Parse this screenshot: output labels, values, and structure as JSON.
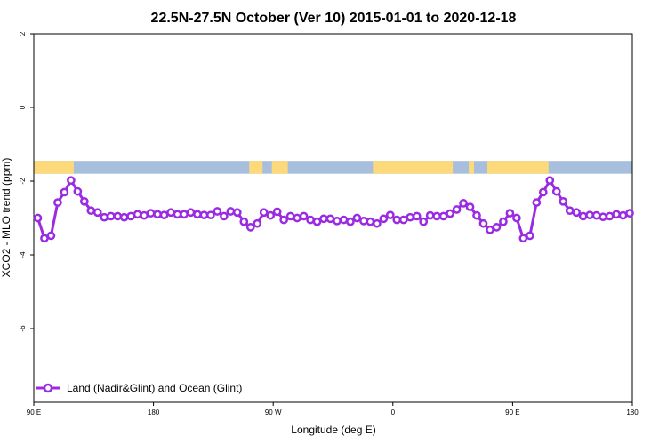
{
  "chart_data": {
    "type": "line",
    "title": "22.5N-27.5N October (Ver 10)   2015-01-01 to 2020-12-18",
    "xlabel": "Longitude (deg E)",
    "ylabel": "XCO2 - MLO trend (ppm)",
    "xlim": [
      90,
      540
    ],
    "ylim": [
      -8,
      2
    ],
    "x_ticks": [
      {
        "value": 90,
        "label": "90 E"
      },
      {
        "value": 180,
        "label": "180"
      },
      {
        "value": 270,
        "label": "90 W"
      },
      {
        "value": 360,
        "label": "0"
      },
      {
        "value": 450,
        "label": "90 E"
      },
      {
        "value": 540,
        "label": "180"
      }
    ],
    "y_ticks": [
      {
        "value": 2,
        "label": "2"
      },
      {
        "value": 0,
        "label": "0"
      },
      {
        "value": -2,
        "label": "-2"
      },
      {
        "value": -4,
        "label": "-4"
      },
      {
        "value": -6,
        "label": "-6"
      }
    ],
    "grid": false,
    "legend_position": "bottom-left",
    "land_ocean_strip": {
      "y_range": [
        -1.8,
        -1.45
      ],
      "ocean_color": "#a8bedd",
      "land_color": "#fcd97b",
      "land_segments": [
        [
          90,
          120
        ],
        [
          252,
          262
        ],
        [
          269,
          279
        ],
        [
          277,
          281
        ],
        [
          345,
          405
        ],
        [
          417,
          421
        ],
        [
          431,
          477
        ]
      ]
    },
    "series": [
      {
        "name": "Land (Nadir&Glint) and Ocean (Glint)",
        "color": "#9a2be2",
        "x": [
          93,
          98,
          103,
          108,
          113,
          118,
          123,
          128,
          133,
          138,
          143,
          148,
          153,
          158,
          163,
          168,
          173,
          178,
          183,
          188,
          193,
          198,
          203,
          208,
          213,
          218,
          223,
          228,
          233,
          238,
          243,
          248,
          253,
          258,
          263,
          268,
          273,
          278,
          283,
          288,
          293,
          298,
          303,
          308,
          313,
          318,
          323,
          328,
          333,
          338,
          343,
          348,
          353,
          358,
          363,
          368,
          373,
          378,
          383,
          388,
          393,
          398,
          403,
          408,
          413,
          418,
          423,
          428,
          433,
          438,
          443,
          448,
          453,
          458,
          463,
          468,
          473,
          478,
          483,
          488,
          493,
          498,
          503,
          508,
          513,
          518,
          523,
          528,
          533,
          538
        ],
        "y": [
          -3.0,
          -3.55,
          -3.48,
          -2.58,
          -2.3,
          -1.98,
          -2.28,
          -2.55,
          -2.8,
          -2.85,
          -2.98,
          -2.95,
          -2.95,
          -2.98,
          -2.95,
          -2.9,
          -2.93,
          -2.87,
          -2.9,
          -2.92,
          -2.85,
          -2.9,
          -2.9,
          -2.85,
          -2.9,
          -2.92,
          -2.92,
          -2.82,
          -2.95,
          -2.82,
          -2.85,
          -3.1,
          -3.25,
          -3.15,
          -2.85,
          -2.93,
          -2.83,
          -3.05,
          -2.95,
          -3.0,
          -2.95,
          -3.05,
          -3.1,
          -3.02,
          -3.02,
          -3.08,
          -3.05,
          -3.1,
          -3.0,
          -3.08,
          -3.1,
          -3.15,
          -3.02,
          -2.92,
          -3.05,
          -3.05,
          -2.98,
          -2.95,
          -3.1,
          -2.93,
          -2.95,
          -2.95,
          -2.88,
          -2.77,
          -2.6,
          -2.7,
          -2.93,
          -3.15,
          -3.32,
          -3.25,
          -3.1,
          -2.87,
          -3.0,
          -3.55,
          -3.48,
          -2.58,
          -2.3,
          -1.98,
          -2.28,
          -2.55,
          -2.8,
          -2.85,
          -2.95,
          -2.92,
          -2.93,
          -2.97,
          -2.95,
          -2.9,
          -2.93,
          -2.87
        ]
      }
    ]
  }
}
